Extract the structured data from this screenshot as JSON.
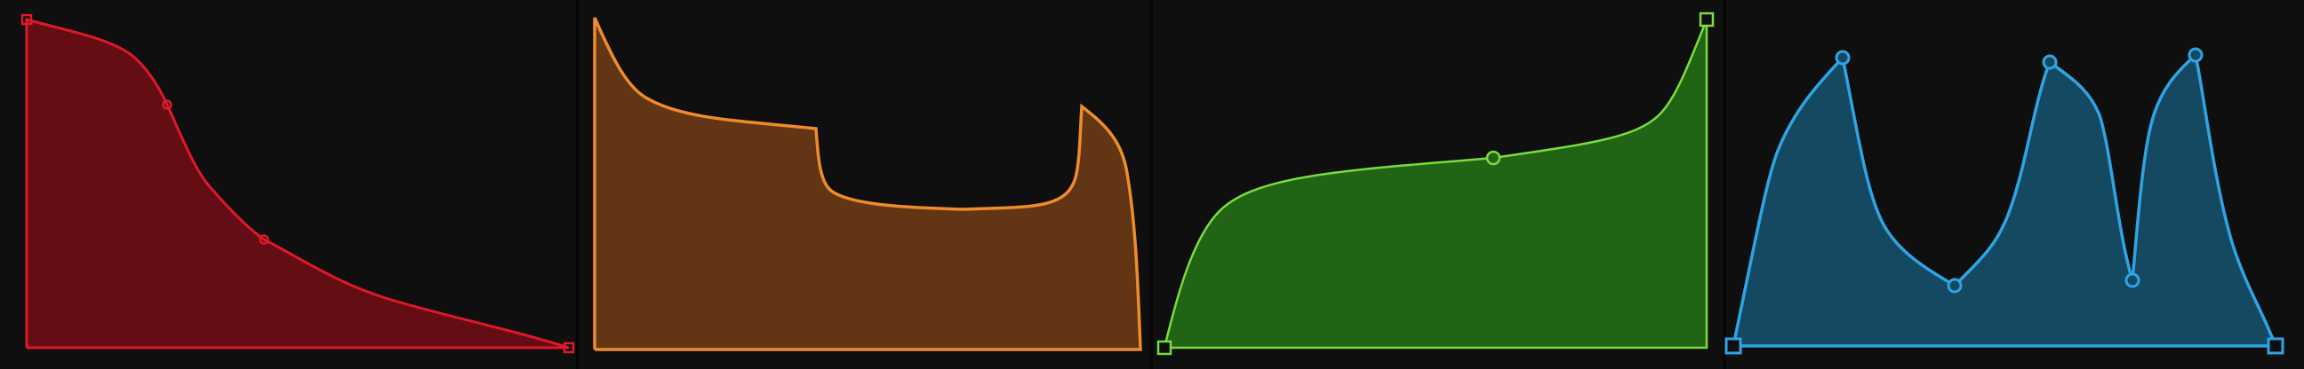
{
  "editors": [
    {
      "id": "envelope-red",
      "stroke": "#e0182a",
      "fill": "#640d14",
      "handles": [
        "square",
        "circle",
        "circle",
        "square"
      ]
    },
    {
      "id": "envelope-orange",
      "stroke": "#ef8c2a",
      "fill": "#623514",
      "handles": []
    },
    {
      "id": "envelope-green",
      "stroke": "#7cdc3c",
      "fill": "#226416",
      "handles": [
        "square",
        "circle",
        "square"
      ]
    },
    {
      "id": "envelope-blue",
      "stroke": "#2fa4e4",
      "fill": "#154861",
      "handles": [
        "square",
        "circle",
        "circle",
        "circle",
        "circle",
        "circle",
        "square"
      ]
    }
  ]
}
